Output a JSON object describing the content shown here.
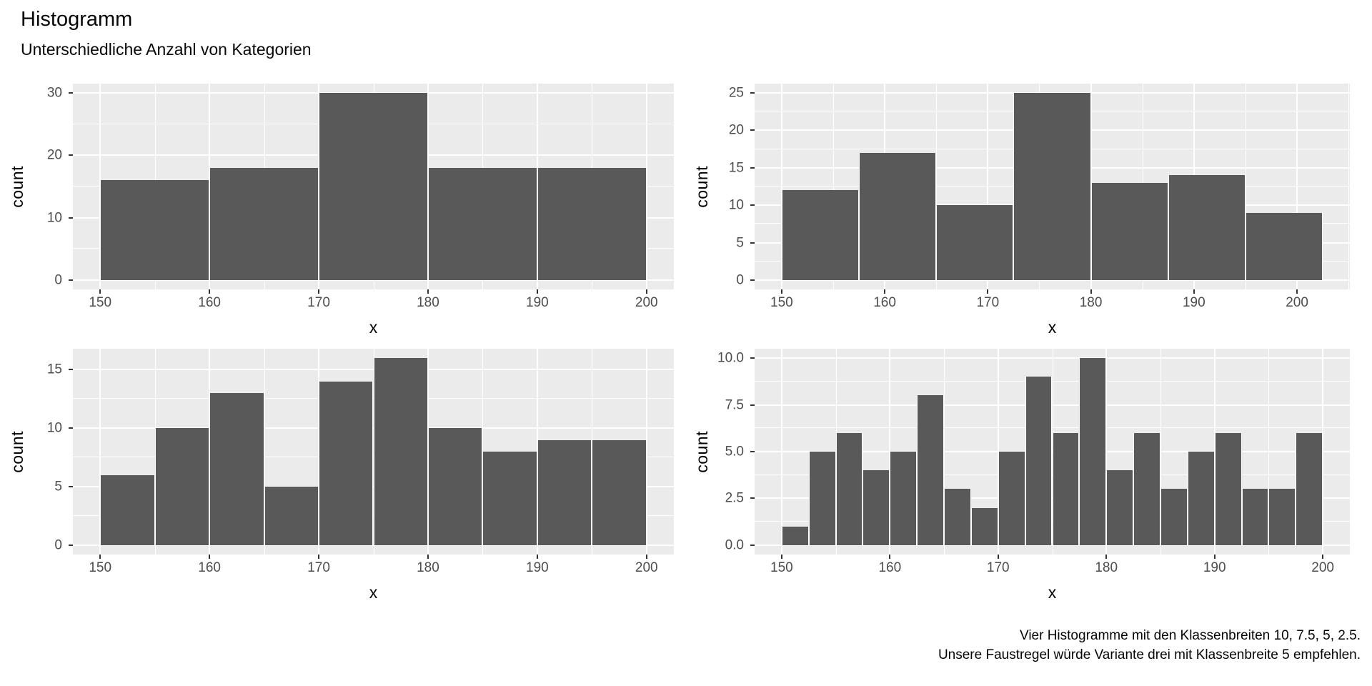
{
  "header": {
    "title": "Histogramm",
    "subtitle": "Unterschiedliche Anzahl von Kategorien"
  },
  "caption": {
    "line1": "Vier Histogramme mit den Klassenbreiten 10, 7.5, 5, 2.5.",
    "line2": "Unsere Faustregel würde Variante drei mit Klassenbreite 5 empfehlen."
  },
  "colors": {
    "bar_fill": "#595959",
    "panel_background": "#EBEBEB",
    "gridline": "#FFFFFF",
    "tick_label_text": "#4D4D4D",
    "tick_mark": "#333333",
    "axis_title_text": "#000000"
  },
  "chart_data": [
    {
      "type": "bar",
      "variant": "histogram",
      "position": "top-left",
      "binwidth": 10,
      "bin_start": 150,
      "values": [
        16,
        18,
        30,
        18,
        18
      ],
      "xlabel": "x",
      "ylabel": "count",
      "x_ticks": [
        150,
        160,
        170,
        180,
        190,
        200
      ],
      "x_minor": [
        155,
        165,
        175,
        185,
        195
      ],
      "y_ticks": [
        0,
        10,
        20,
        30
      ],
      "y_tick_labels": [
        "0",
        "10",
        "20",
        "30"
      ],
      "y_minor": [
        5,
        15,
        25
      ],
      "xlim": [
        147.5,
        202.5
      ],
      "ylim": [
        -1.5,
        31.5
      ],
      "grid": true,
      "legend": false
    },
    {
      "type": "bar",
      "variant": "histogram",
      "position": "top-right",
      "binwidth": 7.5,
      "bin_start": 150,
      "values": [
        12,
        17,
        10,
        25,
        13,
        14,
        9
      ],
      "xlabel": "x",
      "ylabel": "count",
      "x_ticks": [
        150,
        160,
        170,
        180,
        190,
        200
      ],
      "x_minor": [
        155,
        165,
        175,
        185,
        195,
        205
      ],
      "y_ticks": [
        0,
        5,
        10,
        15,
        20,
        25
      ],
      "y_tick_labels": [
        "0",
        "5",
        "10",
        "15",
        "20",
        "25"
      ],
      "y_minor": [
        2.5,
        7.5,
        12.5,
        17.5,
        22.5
      ],
      "xlim": [
        147.375,
        205.125
      ],
      "ylim": [
        -1.25,
        26.25
      ],
      "grid": true,
      "legend": false
    },
    {
      "type": "bar",
      "variant": "histogram",
      "position": "bottom-left",
      "binwidth": 5,
      "bin_start": 150,
      "values": [
        6,
        10,
        13,
        5,
        14,
        16,
        10,
        8,
        9,
        9
      ],
      "xlabel": "x",
      "ylabel": "count",
      "x_ticks": [
        150,
        160,
        170,
        180,
        190,
        200
      ],
      "x_minor": [
        155,
        165,
        175,
        185,
        195
      ],
      "y_ticks": [
        0,
        5,
        10,
        15
      ],
      "y_tick_labels": [
        "0",
        "5",
        "10",
        "15"
      ],
      "y_minor": [
        2.5,
        7.5,
        12.5
      ],
      "xlim": [
        147.5,
        202.5
      ],
      "ylim": [
        -0.8,
        16.8
      ],
      "grid": true,
      "legend": false
    },
    {
      "type": "bar",
      "variant": "histogram",
      "position": "bottom-right",
      "binwidth": 2.5,
      "bin_start": 150,
      "values": [
        1,
        5,
        6,
        4,
        5,
        8,
        3,
        2,
        5,
        9,
        6,
        10,
        4,
        6,
        3,
        5,
        6,
        3,
        3,
        6
      ],
      "xlabel": "x",
      "ylabel": "count",
      "x_ticks": [
        150,
        160,
        170,
        180,
        190,
        200
      ],
      "x_minor": [
        155,
        165,
        175,
        185,
        195
      ],
      "y_ticks": [
        0,
        2.5,
        5,
        7.5,
        10
      ],
      "y_tick_labels": [
        "0.0",
        "2.5",
        "5.0",
        "7.5",
        "10.0"
      ],
      "y_minor": [
        1.25,
        3.75,
        6.25,
        8.75
      ],
      "xlim": [
        147.5,
        202.5
      ],
      "ylim": [
        -0.5,
        10.5
      ],
      "grid": true,
      "legend": false
    }
  ]
}
